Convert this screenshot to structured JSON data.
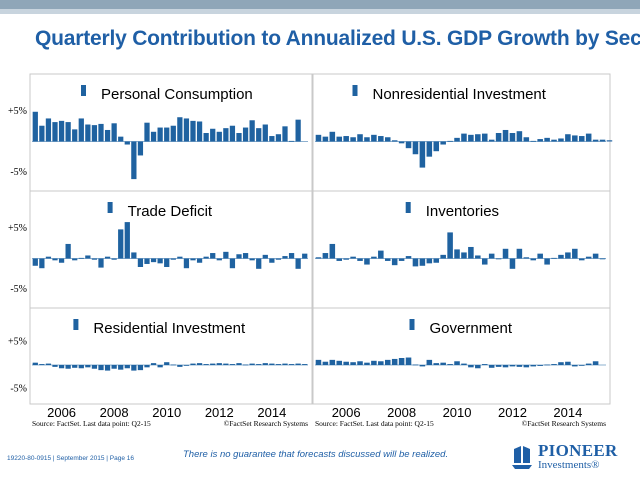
{
  "header": {
    "title": "Quarterly Contribution to Annualized U.S. GDP Growth by Sector"
  },
  "colors": {
    "bar": "#1f62a0",
    "title": "#1f5fa6",
    "panel_border": "#c9c9c9"
  },
  "chart_data": [
    {
      "type": "bar",
      "title": "Personal Consumption",
      "y_ticks": [
        "+5%",
        "-5%"
      ],
      "ylim": [
        -7.5,
        7.5
      ],
      "x_tick_labels": [
        "2006",
        "2008",
        "2010",
        "2012",
        "2014"
      ],
      "x_range": [
        "Q1-05",
        "Q2-15"
      ],
      "values": [
        4.9,
        2.6,
        3.8,
        3.2,
        3.4,
        3.2,
        2.0,
        3.8,
        2.8,
        2.7,
        2.9,
        1.9,
        3.0,
        0.8,
        -0.5,
        -6.2,
        -2.3,
        3.1,
        1.6,
        2.3,
        2.3,
        2.6,
        4.0,
        3.8,
        3.4,
        3.3,
        1.4,
        2.1,
        1.6,
        2.2,
        2.6,
        1.4,
        2.3,
        3.5,
        2.2,
        2.8,
        0.9,
        1.2,
        2.5,
        0.1,
        3.6
      ],
      "source": "Source: FactSet. Last data point: Q2-15",
      "copyright": "©FactSet Research Systems"
    },
    {
      "type": "bar",
      "title": "Nonresidential Investment",
      "values": [
        1.1,
        0.8,
        1.6,
        0.8,
        0.9,
        0.7,
        1.2,
        0.7,
        1.1,
        0.9,
        0.7,
        0.2,
        -0.3,
        -1.1,
        -2.1,
        -4.3,
        -2.5,
        -1.6,
        -0.5,
        0.1,
        0.6,
        1.3,
        1.1,
        1.2,
        1.3,
        0.3,
        1.4,
        1.9,
        1.4,
        1.7,
        0.7,
        0.1,
        0.4,
        0.6,
        0.3,
        0.5,
        1.2,
        1.0,
        0.9,
        1.3,
        0.3,
        0.3,
        0.2
      ],
      "x_range": [
        "Q1-05",
        "Q2-15"
      ]
    },
    {
      "type": "bar",
      "title": "Trade Deficit",
      "y_ticks": [
        "+5%",
        "-5%"
      ],
      "ylim": [
        -7.5,
        7.5
      ],
      "values": [
        -1.2,
        -1.6,
        0.3,
        -0.3,
        -0.7,
        2.4,
        -0.3,
        0.1,
        0.5,
        -0.2,
        -1.5,
        0.3,
        -0.2,
        4.8,
        6.0,
        1.0,
        -1.4,
        -0.9,
        -0.6,
        -0.8,
        -1.4,
        -0.2,
        0.3,
        -1.6,
        -0.3,
        -0.7,
        0.3,
        0.9,
        -0.3,
        1.1,
        -1.6,
        0.7,
        0.9,
        -0.3,
        -1.7,
        0.6,
        -0.7,
        -0.2,
        0.4,
        0.9,
        -1.7,
        0.8
      ],
      "source": "",
      "x_range": [
        "Q1-05",
        "Q2-15"
      ]
    },
    {
      "type": "bar",
      "title": "Inventories",
      "values": [
        0.2,
        0.9,
        2.4,
        -0.4,
        -0.2,
        0.3,
        -0.4,
        -1.0,
        0.3,
        1.3,
        -0.4,
        -1.1,
        -0.4,
        0.4,
        -1.3,
        -1.2,
        -0.8,
        -0.7,
        0.6,
        4.3,
        1.5,
        1.0,
        1.9,
        0.5,
        -1.0,
        0.8,
        -0.1,
        1.6,
        -1.7,
        1.6,
        0.2,
        -0.3,
        0.8,
        -1.0,
        0.1,
        0.6,
        1.0,
        1.6,
        -0.3,
        0.3,
        0.8,
        -0.1
      ],
      "x_range": [
        "Q1-05",
        "Q2-15"
      ]
    },
    {
      "type": "bar",
      "title": "Residential Investment",
      "y_ticks": [
        "+5%",
        "-5%"
      ],
      "ylim": [
        -7.5,
        7.5
      ],
      "x_tick_labels": [
        "2006",
        "2008",
        "2010",
        "2012",
        "2014"
      ],
      "values": [
        0.5,
        0.2,
        0.3,
        -0.4,
        -0.7,
        -0.8,
        -0.6,
        -0.7,
        -0.5,
        -0.8,
        -1.1,
        -1.2,
        -0.8,
        -1.0,
        -0.7,
        -1.2,
        -1.1,
        -0.5,
        0.4,
        -0.5,
        0.6,
        0.1,
        -0.4,
        -0.1,
        0.3,
        0.4,
        0.2,
        0.3,
        0.4,
        0.3,
        0.2,
        0.4,
        0.1,
        0.3,
        0.2,
        0.4,
        0.3,
        0.2,
        0.3,
        0.2,
        0.3,
        0.2
      ],
      "source": "Source: FactSet. Last data point: Q2-15",
      "copyright": "©FactSet Research Systems",
      "x_range": [
        "Q1-05",
        "Q2-15"
      ]
    },
    {
      "type": "bar",
      "title": "Government",
      "x_tick_labels": [
        "2006",
        "2008",
        "2010",
        "2012",
        "2014"
      ],
      "values": [
        1.1,
        0.7,
        1.1,
        0.9,
        0.7,
        0.6,
        0.8,
        0.5,
        0.9,
        0.8,
        1.1,
        1.3,
        1.5,
        1.6,
        0.1,
        -0.3,
        1.1,
        0.4,
        0.5,
        0.2,
        0.8,
        0.3,
        -0.5,
        -0.7,
        0.2,
        -0.6,
        -0.4,
        -0.5,
        -0.3,
        -0.4,
        -0.5,
        -0.3,
        -0.2,
        0.1,
        0.2,
        0.6,
        0.7,
        -0.3,
        -0.1,
        0.3,
        0.8
      ],
      "source": "Source: FactSet. Last data point: Q2-15",
      "copyright": "©FactSet Research Systems",
      "x_range": [
        "Q1-05",
        "Q2-15"
      ]
    }
  ],
  "footer": {
    "disclaimer": "There is no guarantee that forecasts discussed will be realized.",
    "code": "19220-80-0915 | September 2015 | Page 16",
    "logo_name": "PIONEER",
    "logo_sub": "Investments®"
  }
}
